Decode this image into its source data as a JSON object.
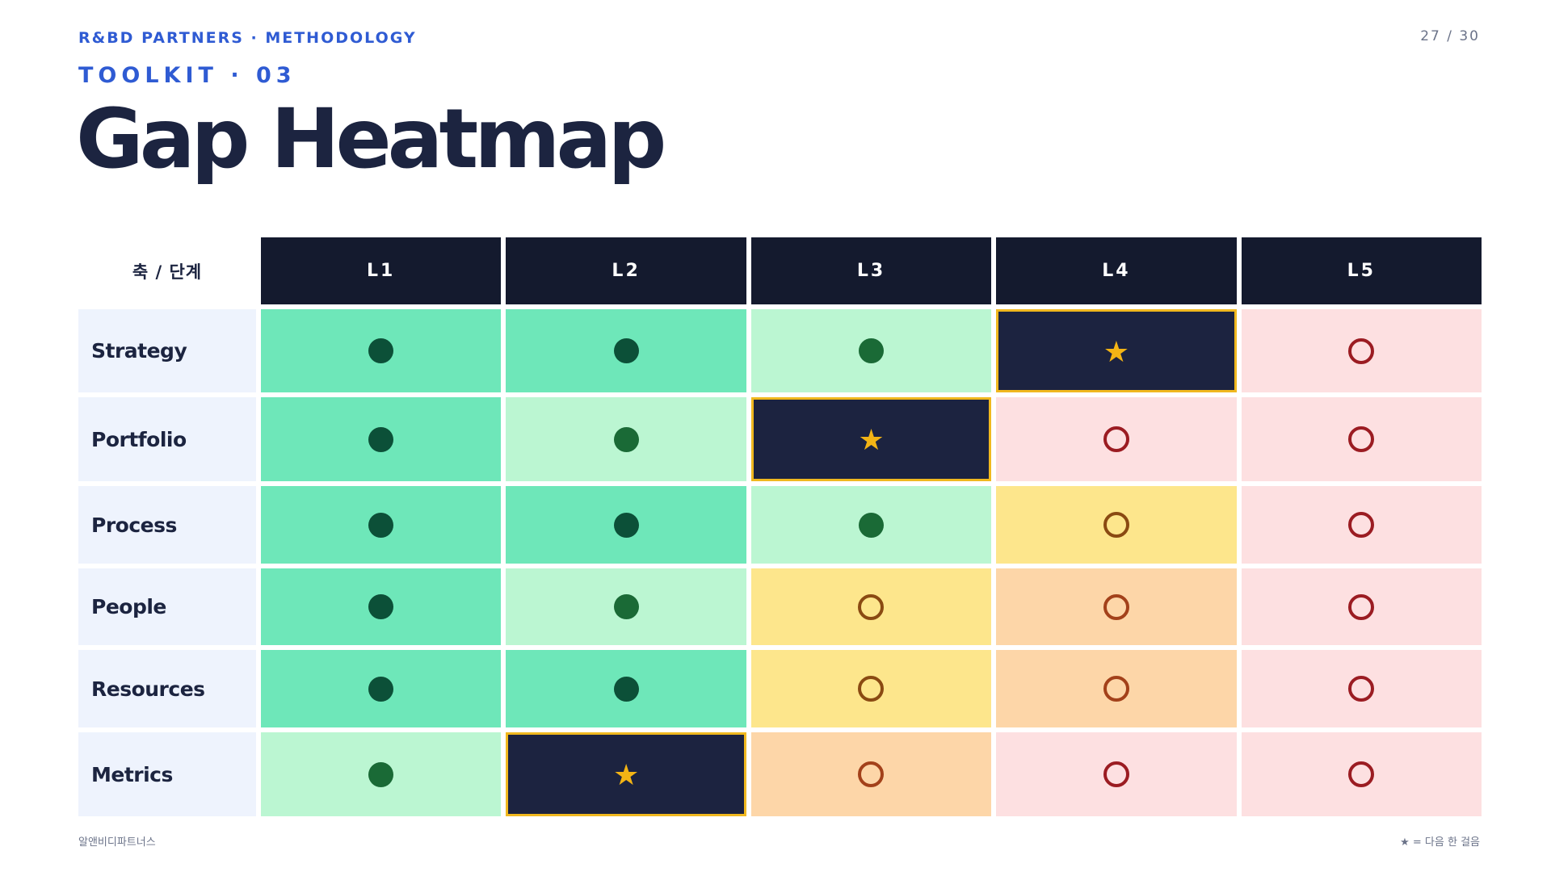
{
  "header": {
    "kicker": "R&BD PARTNERS · METHODOLOGY",
    "page_num": "27 / 30",
    "section": "TOOLKIT · 03",
    "title": "Gap Heatmap"
  },
  "table": {
    "corner_label": "축 / 단계",
    "columns": [
      "L1",
      "L2",
      "L3",
      "L4",
      "L5"
    ],
    "rows": [
      {
        "label": "Strategy",
        "cells": [
          {
            "state": "mastered",
            "mark": "dot-dark"
          },
          {
            "state": "mastered",
            "mark": "dot-dark"
          },
          {
            "state": "achieved",
            "mark": "dot-mid"
          },
          {
            "state": "next",
            "mark": "star"
          },
          {
            "state": "gap-high",
            "mark": "ring-red"
          }
        ]
      },
      {
        "label": "Portfolio",
        "cells": [
          {
            "state": "mastered",
            "mark": "dot-dark"
          },
          {
            "state": "achieved",
            "mark": "dot-mid"
          },
          {
            "state": "next",
            "mark": "star"
          },
          {
            "state": "gap-high",
            "mark": "ring-red"
          },
          {
            "state": "gap-high",
            "mark": "ring-red"
          }
        ]
      },
      {
        "label": "Process",
        "cells": [
          {
            "state": "mastered",
            "mark": "dot-dark"
          },
          {
            "state": "mastered",
            "mark": "dot-dark"
          },
          {
            "state": "achieved",
            "mark": "dot-mid"
          },
          {
            "state": "gap-low",
            "mark": "ring-brown"
          },
          {
            "state": "gap-high",
            "mark": "ring-red"
          }
        ]
      },
      {
        "label": "People",
        "cells": [
          {
            "state": "mastered",
            "mark": "dot-dark"
          },
          {
            "state": "achieved",
            "mark": "dot-mid"
          },
          {
            "state": "gap-low",
            "mark": "ring-brown"
          },
          {
            "state": "gap-mid",
            "mark": "ring-orange"
          },
          {
            "state": "gap-high",
            "mark": "ring-red"
          }
        ]
      },
      {
        "label": "Resources",
        "cells": [
          {
            "state": "mastered",
            "mark": "dot-dark"
          },
          {
            "state": "mastered",
            "mark": "dot-dark"
          },
          {
            "state": "gap-low",
            "mark": "ring-brown"
          },
          {
            "state": "gap-mid",
            "mark": "ring-orange"
          },
          {
            "state": "gap-high",
            "mark": "ring-red"
          }
        ]
      },
      {
        "label": "Metrics",
        "cells": [
          {
            "state": "achieved",
            "mark": "dot-mid"
          },
          {
            "state": "next",
            "mark": "star"
          },
          {
            "state": "gap-mid",
            "mark": "ring-orange"
          },
          {
            "state": "gap-high",
            "mark": "ring-red"
          },
          {
            "state": "gap-high",
            "mark": "ring-red"
          }
        ]
      }
    ]
  },
  "colors": {
    "accent": "#2f5bd3",
    "header_bg": "#141a2e",
    "mastered": "#6ee7b9",
    "achieved": "#bbf6d2",
    "next": "#1c2340",
    "next_border": "#f0b81f",
    "gap_low": "#fde68c",
    "gap_mid": "#fdd6a8",
    "gap_high": "#fde0e1"
  },
  "footer": {
    "brand": "알앤비디파트너스",
    "legend": "★ = 다음 한 걸음"
  }
}
